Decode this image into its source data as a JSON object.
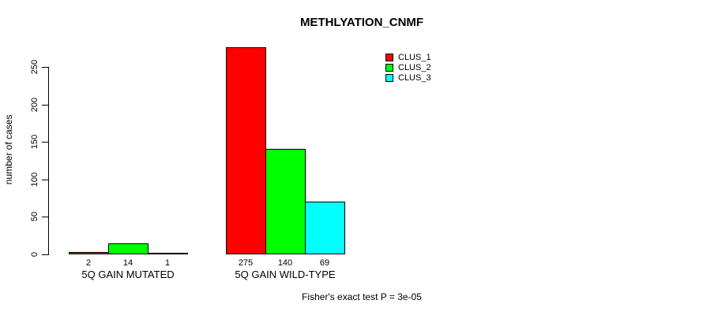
{
  "chart_data": {
    "type": "bar",
    "title": "METHLYATION_CNMF",
    "xlabel": "",
    "ylabel": "number of cases",
    "ylim": [
      0,
      275
    ],
    "yticks": [
      0,
      50,
      100,
      150,
      200,
      250
    ],
    "grid": false,
    "legend_position": "top-right",
    "categories": [
      "5Q GAIN MUTATED",
      "5Q GAIN WILD-TYPE"
    ],
    "series": [
      {
        "name": "CLUS_1",
        "color": "#FF0000",
        "values": [
          2,
          275
        ]
      },
      {
        "name": "CLUS_2",
        "color": "#00FF00",
        "values": [
          14,
          140
        ]
      },
      {
        "name": "CLUS_3",
        "color": "#00FFFF",
        "values": [
          1,
          69
        ]
      }
    ],
    "bar_value_labels": [
      [
        "2",
        "14",
        "1"
      ],
      [
        "275",
        "140",
        "69"
      ]
    ],
    "annotation": "Fisher's exact test P = 3e-05"
  }
}
